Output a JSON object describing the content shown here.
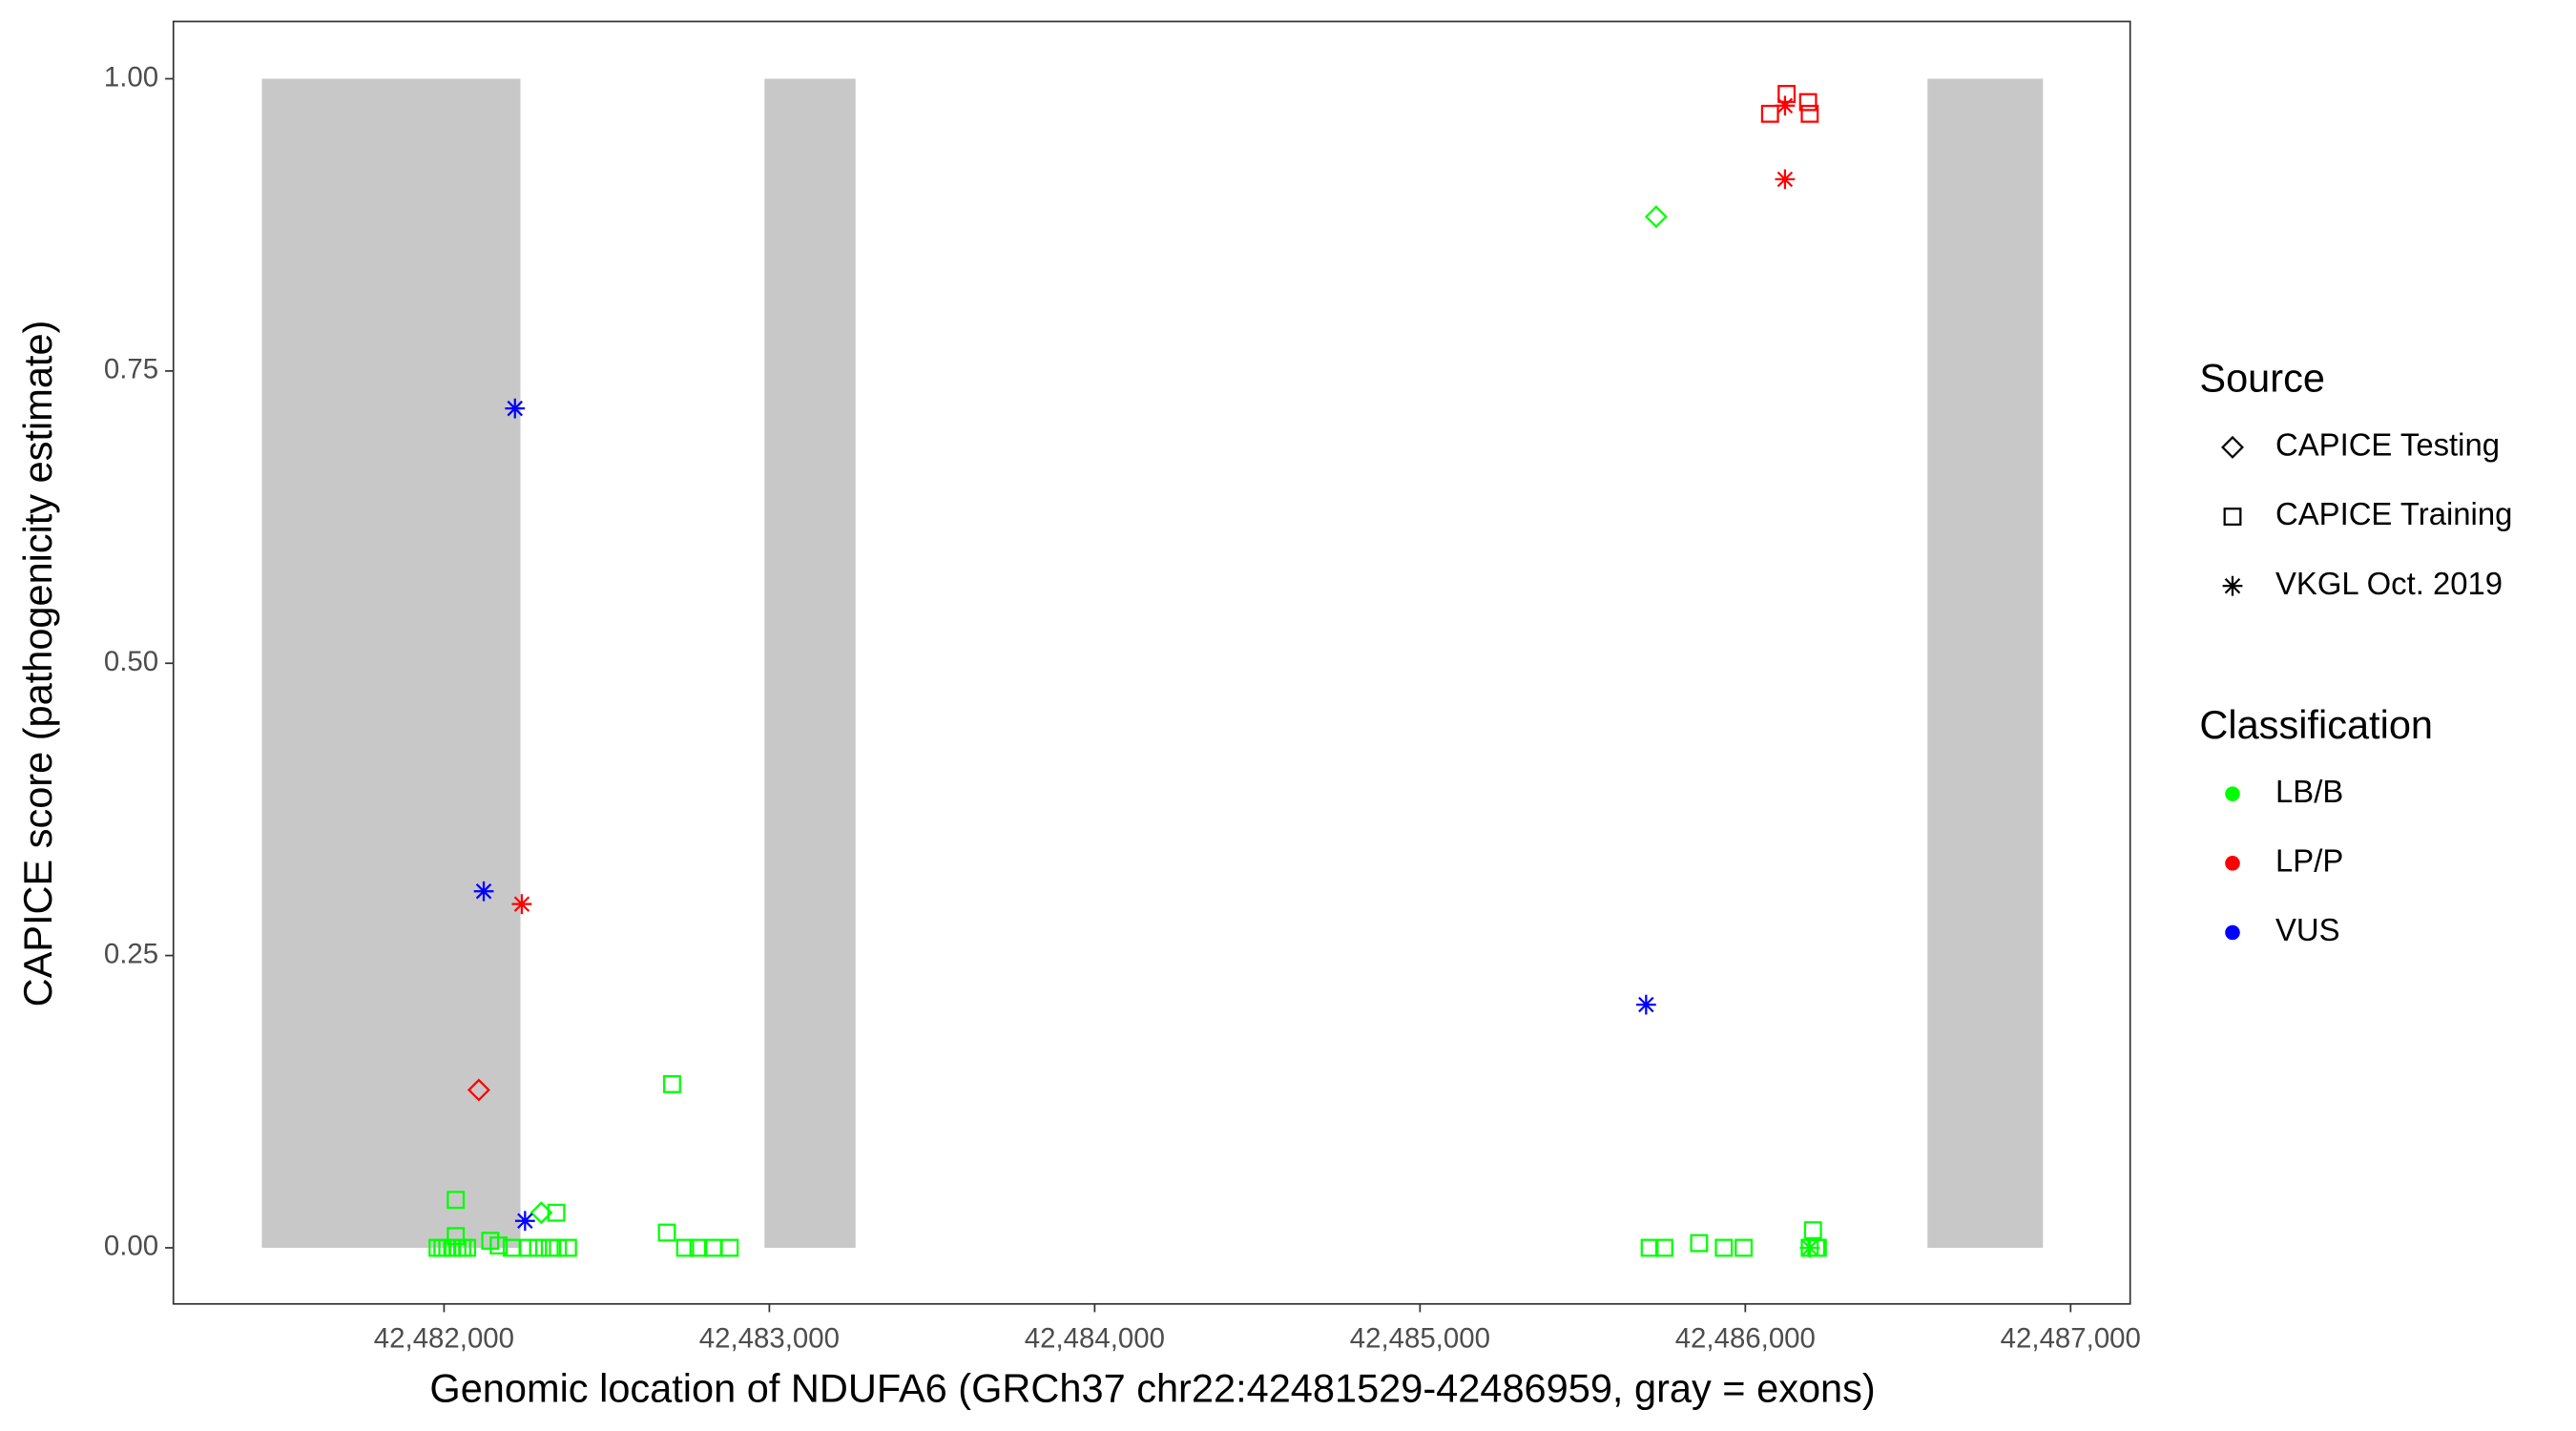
{
  "chart_data": {
    "type": "scatter",
    "x_label": "Genomic location of NDUFA6 (GRCh37 chr22:42481529-42486959, gray = exons)",
    "y_label": "CAPICE score (pathogenicity estimate)",
    "xlim": [
      42481168,
      42487183
    ],
    "ylim": [
      -0.048,
      1.049
    ],
    "xticks": [
      {
        "value": 42482000,
        "label": "42,482,000"
      },
      {
        "value": 42483000,
        "label": "42,483,000"
      },
      {
        "value": 42484000,
        "label": "42,484,000"
      },
      {
        "value": 42485000,
        "label": "42,485,000"
      },
      {
        "value": 42486000,
        "label": "42,486,000"
      },
      {
        "value": 42487000,
        "label": "42,487,000"
      }
    ],
    "yticks": [
      {
        "value": 0,
        "label": "0.00"
      },
      {
        "value": 0.25,
        "label": "0.25"
      },
      {
        "value": 0.5,
        "label": "0.50"
      },
      {
        "value": 0.75,
        "label": "0.75"
      },
      {
        "value": 1,
        "label": "1.00"
      }
    ],
    "exons": [
      [
        42481440,
        42482235
      ],
      [
        42482985,
        42483265
      ],
      [
        42486560,
        42486915
      ]
    ],
    "exon_color": "#c8c8c8",
    "source_legend": {
      "title": "Source",
      "entries": [
        {
          "name": "CAPICE Testing",
          "shape": "diamond"
        },
        {
          "name": "CAPICE Training",
          "shape": "square"
        },
        {
          "name": "VKGL Oct. 2019",
          "shape": "asterisk"
        }
      ]
    },
    "classification_legend": {
      "title": "Classification",
      "entries": [
        {
          "name": "LB/B",
          "color": "#00ff00"
        },
        {
          "name": "LP/P",
          "color": "#ff0000"
        },
        {
          "name": "VUS",
          "color": "#0000ff"
        }
      ]
    },
    "series": [
      {
        "source": 0,
        "classification": 0,
        "x": [
          42485726,
          42482299
        ],
        "y": [
          0.882,
          0.03
        ]
      },
      {
        "source": 0,
        "classification": 1,
        "x": [
          42482107
        ],
        "y": [
          0.135
        ]
      },
      {
        "source": 1,
        "classification": 0,
        "x": [
          42481980,
          42481995,
          42482010,
          42482025,
          42482041,
          42482056,
          42482071,
          42482036,
          42482036,
          42482142,
          42482168,
          42482208,
          42482259,
          42482289,
          42482325,
          42482350,
          42482381,
          42482345,
          42482685,
          42482701,
          42482741,
          42482782,
          42482827,
          42482878,
          42485706,
          42485751,
          42485858,
          42485934,
          42485995,
          42486208,
          42486198,
          42486218,
          42486223
        ],
        "y": [
          0,
          0,
          0,
          0,
          0,
          0,
          0,
          0.041,
          0.01,
          0.006,
          0.002,
          0,
          0,
          0,
          0,
          0,
          0,
          0.03,
          0.013,
          0.14,
          0,
          0,
          0,
          0,
          0,
          0,
          0.004,
          0,
          0,
          0.015,
          0,
          0,
          0
        ]
      },
      {
        "source": 1,
        "classification": 1,
        "x": [
          42486076,
          42486127,
          42486193,
          42486198
        ],
        "y": [
          0.97,
          0.987,
          0.98,
          0.97
        ]
      },
      {
        "source": 2,
        "classification": 0,
        "x": [
          42486198
        ],
        "y": [
          0
        ]
      },
      {
        "source": 2,
        "classification": 1,
        "x": [
          42486122,
          42486122,
          42482239
        ],
        "y": [
          0.977,
          0.914,
          0.294
        ]
      },
      {
        "source": 2,
        "classification": 2,
        "x": [
          42482218,
          42482122,
          42482249,
          42485695
        ],
        "y": [
          0.718,
          0.305,
          0.023,
          0.208
        ]
      }
    ]
  }
}
